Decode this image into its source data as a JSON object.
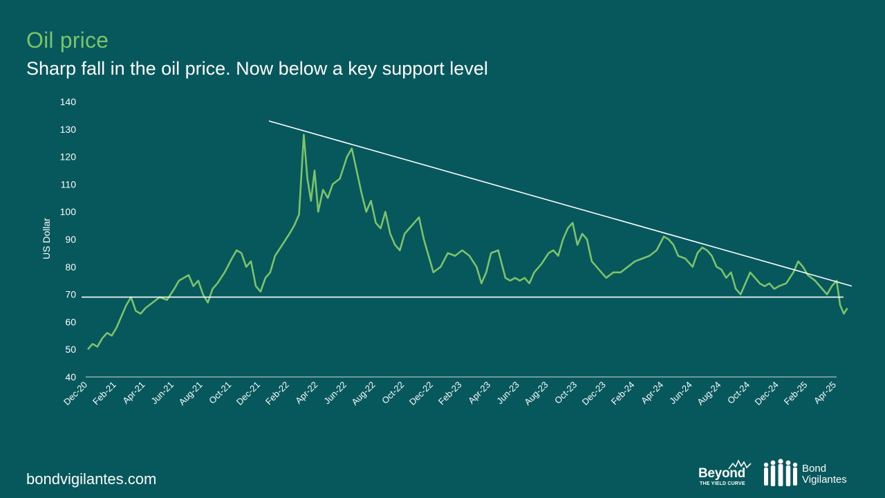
{
  "header": {
    "title": "Oil price",
    "subtitle": "Sharp fall in the oil price. Now below a key support level"
  },
  "footer": {
    "url": "bondvigilantes.com",
    "logo_beyond": {
      "word": "Beyond",
      "tagline": "THE YIELD CURVE"
    },
    "logo_bond": {
      "line1": "Bond",
      "line2": "Vigilantes"
    }
  },
  "colors": {
    "background": "#06585d",
    "title": "#7cc36a",
    "series": "#7cc36a",
    "annotation_lines": "#ffffff",
    "text": "#ffffff"
  },
  "chart_data": {
    "type": "line",
    "title": "",
    "xlabel": "",
    "ylabel": "US Dollar",
    "ylim": [
      40,
      140
    ],
    "yticks": [
      40,
      50,
      60,
      70,
      80,
      90,
      100,
      110,
      120,
      130,
      140
    ],
    "xlim": [
      "2020-12",
      "2025-04"
    ],
    "xticks": [
      "Dec-20",
      "Feb-21",
      "Apr-21",
      "Jun-21",
      "Aug-21",
      "Oct-21",
      "Dec-21",
      "Feb-22",
      "Apr-22",
      "Jun-22",
      "Aug-22",
      "Oct-22",
      "Dec-22",
      "Feb-23",
      "Apr-23",
      "Jun-23",
      "Aug-23",
      "Oct-23",
      "Dec-23",
      "Feb-24",
      "Apr-24",
      "Jun-24",
      "Aug-24",
      "Oct-24",
      "Dec-24",
      "Feb-25",
      "Apr-25"
    ],
    "grid": false,
    "legend": "none",
    "series": [
      {
        "points": [
          [
            "2020-12",
            50
          ],
          [
            "2020-12",
            52
          ],
          [
            "2020-12",
            51
          ],
          [
            "2021-01",
            54
          ],
          [
            "2021-01",
            56
          ],
          [
            "2021-01",
            55
          ],
          [
            "2021-02",
            58
          ],
          [
            "2021-02",
            62
          ],
          [
            "2021-02",
            66
          ],
          [
            "2021-03",
            69
          ],
          [
            "2021-03",
            64
          ],
          [
            "2021-03",
            63
          ],
          [
            "2021-04",
            65
          ],
          [
            "2021-04",
            67
          ],
          [
            "2021-05",
            69
          ],
          [
            "2021-05",
            68
          ],
          [
            "2021-06",
            72
          ],
          [
            "2021-06",
            75
          ],
          [
            "2021-06",
            76
          ],
          [
            "2021-07",
            77
          ],
          [
            "2021-07",
            73
          ],
          [
            "2021-07",
            75
          ],
          [
            "2021-08",
            70
          ],
          [
            "2021-08",
            67
          ],
          [
            "2021-08",
            72
          ],
          [
            "2021-09",
            74
          ],
          [
            "2021-09",
            78
          ],
          [
            "2021-10",
            83
          ],
          [
            "2021-10",
            86
          ],
          [
            "2021-10",
            85
          ],
          [
            "2021-11",
            80
          ],
          [
            "2021-11",
            82
          ],
          [
            "2021-11",
            73
          ],
          [
            "2021-12",
            71
          ],
          [
            "2021-12",
            76
          ],
          [
            "2021-12",
            78
          ],
          [
            "2022-01",
            84
          ],
          [
            "2022-01",
            88
          ],
          [
            "2022-02",
            92
          ],
          [
            "2022-02",
            95
          ],
          [
            "2022-02",
            99
          ],
          [
            "2022-03",
            128
          ],
          [
            "2022-03",
            112
          ],
          [
            "2022-03",
            104
          ],
          [
            "2022-03",
            115
          ],
          [
            "2022-04",
            100
          ],
          [
            "2022-04",
            108
          ],
          [
            "2022-04",
            105
          ],
          [
            "2022-05",
            110
          ],
          [
            "2022-05",
            112
          ],
          [
            "2022-06",
            120
          ],
          [
            "2022-06",
            123
          ],
          [
            "2022-06",
            115
          ],
          [
            "2022-07",
            107
          ],
          [
            "2022-07",
            100
          ],
          [
            "2022-07",
            104
          ],
          [
            "2022-08",
            96
          ],
          [
            "2022-08",
            94
          ],
          [
            "2022-08",
            100
          ],
          [
            "2022-09",
            92
          ],
          [
            "2022-09",
            88
          ],
          [
            "2022-09",
            86
          ],
          [
            "2022-10",
            92
          ],
          [
            "2022-10",
            94
          ],
          [
            "2022-10",
            96
          ],
          [
            "2022-11",
            98
          ],
          [
            "2022-11",
            90
          ],
          [
            "2022-11",
            84
          ],
          [
            "2022-12",
            78
          ],
          [
            "2022-12",
            80
          ],
          [
            "2023-01",
            85
          ],
          [
            "2023-01",
            84
          ],
          [
            "2023-02",
            86
          ],
          [
            "2023-02",
            84
          ],
          [
            "2023-03",
            80
          ],
          [
            "2023-03",
            74
          ],
          [
            "2023-03",
            78
          ],
          [
            "2023-04",
            85
          ],
          [
            "2023-04",
            86
          ],
          [
            "2023-05",
            76
          ],
          [
            "2023-05",
            75
          ],
          [
            "2023-05",
            76
          ],
          [
            "2023-06",
            75
          ],
          [
            "2023-06",
            76
          ],
          [
            "2023-06",
            74
          ],
          [
            "2023-07",
            78
          ],
          [
            "2023-07",
            81
          ],
          [
            "2023-08",
            85
          ],
          [
            "2023-08",
            86
          ],
          [
            "2023-08",
            84
          ],
          [
            "2023-09",
            90
          ],
          [
            "2023-09",
            94
          ],
          [
            "2023-09",
            96
          ],
          [
            "2023-10",
            88
          ],
          [
            "2023-10",
            92
          ],
          [
            "2023-10",
            90
          ],
          [
            "2023-11",
            82
          ],
          [
            "2023-11",
            80
          ],
          [
            "2023-11",
            78
          ],
          [
            "2023-12",
            76
          ],
          [
            "2023-12",
            78
          ],
          [
            "2024-01",
            78
          ],
          [
            "2024-01",
            80
          ],
          [
            "2024-02",
            82
          ],
          [
            "2024-02",
            83
          ],
          [
            "2024-03",
            84
          ],
          [
            "2024-03",
            86
          ],
          [
            "2024-04",
            91
          ],
          [
            "2024-04",
            90
          ],
          [
            "2024-04",
            88
          ],
          [
            "2024-05",
            84
          ],
          [
            "2024-05",
            83
          ],
          [
            "2024-06",
            80
          ],
          [
            "2024-06",
            85
          ],
          [
            "2024-06",
            87
          ],
          [
            "2024-07",
            86
          ],
          [
            "2024-07",
            84
          ],
          [
            "2024-07",
            80
          ],
          [
            "2024-08",
            79
          ],
          [
            "2024-08",
            76
          ],
          [
            "2024-08",
            78
          ],
          [
            "2024-09",
            72
          ],
          [
            "2024-09",
            70
          ],
          [
            "2024-09",
            74
          ],
          [
            "2024-10",
            78
          ],
          [
            "2024-10",
            76
          ],
          [
            "2024-10",
            74
          ],
          [
            "2024-11",
            73
          ],
          [
            "2024-11",
            74
          ],
          [
            "2024-11",
            72
          ],
          [
            "2024-12",
            73
          ],
          [
            "2024-12",
            74
          ],
          [
            "2025-01",
            78
          ],
          [
            "2025-01",
            82
          ],
          [
            "2025-01",
            80
          ],
          [
            "2025-02",
            77
          ],
          [
            "2025-02",
            75
          ],
          [
            "2025-03",
            72
          ],
          [
            "2025-03",
            70
          ],
          [
            "2025-03",
            73
          ],
          [
            "2025-04",
            75
          ],
          [
            "2025-04",
            66
          ],
          [
            "2025-04",
            63
          ],
          [
            "2025-04",
            65
          ]
        ]
      }
    ],
    "annotations": [
      {
        "type": "trendline",
        "from": [
          "2021-12",
          133
        ],
        "to": [
          "2025-05",
          73
        ]
      },
      {
        "type": "horizontal_line",
        "y": 69
      }
    ]
  }
}
